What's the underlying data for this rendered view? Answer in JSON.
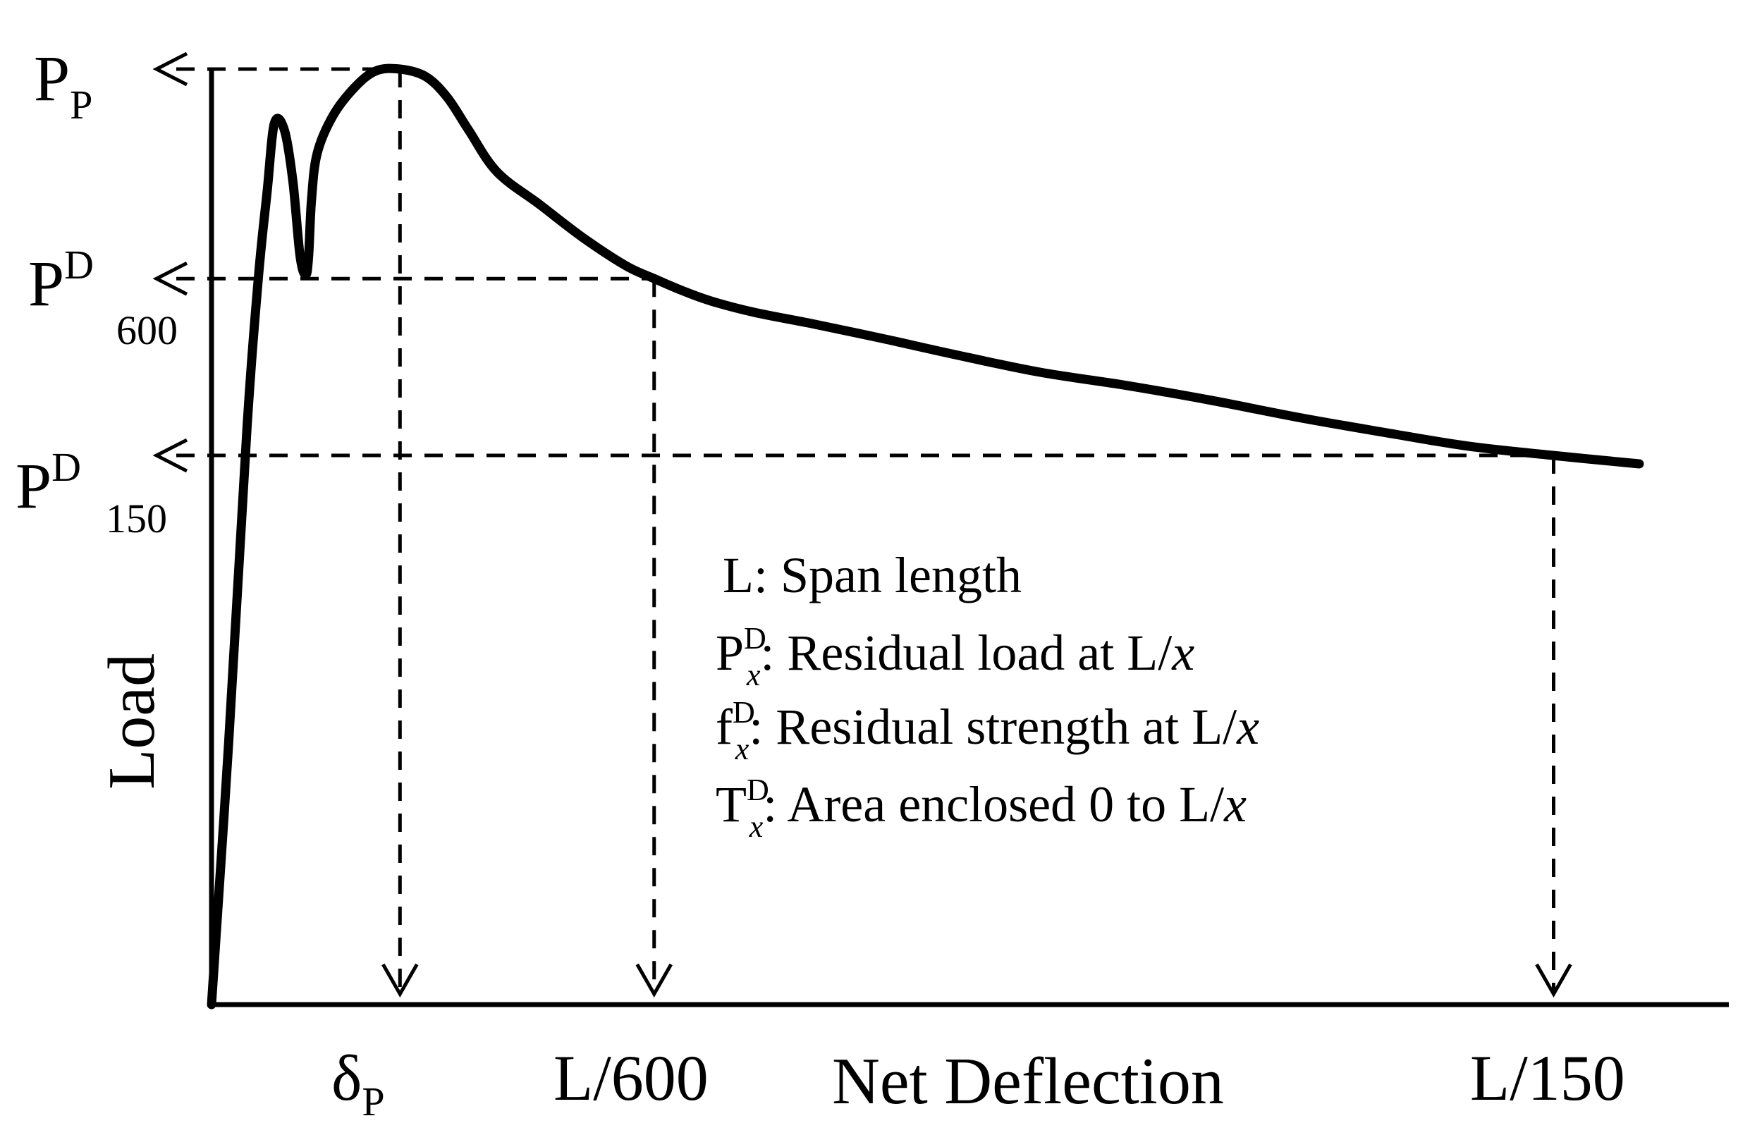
{
  "chart_data": {
    "type": "line",
    "title": "",
    "xlabel": "Net Deflection",
    "ylabel": "Load",
    "xlim": [
      0,
      1
    ],
    "ylim": [
      0,
      1
    ],
    "grid": false,
    "series": [
      {
        "name": "Load-deflection curve",
        "x": [
          0.0,
          0.012,
          0.025,
          0.033,
          0.039,
          0.044,
          0.051,
          0.057,
          0.062,
          0.066,
          0.068,
          0.07,
          0.074,
          0.085,
          0.1,
          0.115,
          0.132,
          0.15,
          0.165,
          0.18,
          0.2,
          0.23,
          0.26,
          0.29,
          0.31,
          0.33,
          0.35,
          0.38,
          0.42,
          0.47,
          0.52,
          0.58,
          0.64,
          0.7,
          0.76,
          0.82,
          0.88,
          0.94,
          1.0
        ],
        "values": [
          0.0,
          0.28,
          0.62,
          0.78,
          0.87,
          0.942,
          0.935,
          0.88,
          0.8,
          0.78,
          0.8,
          0.86,
          0.91,
          0.95,
          0.98,
          0.998,
          1.0,
          0.992,
          0.97,
          0.935,
          0.89,
          0.855,
          0.82,
          0.79,
          0.776,
          0.763,
          0.752,
          0.74,
          0.728,
          0.712,
          0.695,
          0.676,
          0.662,
          0.646,
          0.628,
          0.612,
          0.597,
          0.587,
          0.578
        ]
      }
    ],
    "reference_points": [
      {
        "name": "peak",
        "x": 0.132,
        "y": 1.0,
        "y_label": "P",
        "y_sub": "P",
        "x_label": "δ",
        "x_sub": "P"
      },
      {
        "name": "l600",
        "x": 0.31,
        "y": 0.776,
        "y_label": "P",
        "y_sup": "D",
        "y_sub": "600",
        "x_label": "L/600"
      },
      {
        "name": "l150",
        "x": 0.94,
        "y": 0.587,
        "y_label": "P",
        "y_sup": "D",
        "y_sub": "150",
        "x_label": "L/150"
      }
    ],
    "legend": [
      {
        "main": "L",
        "sup": "",
        "sub": "",
        "text": ": Span length"
      },
      {
        "main": "P",
        "sup": "D",
        "sub": "x",
        "text": ": Residual load at L/",
        "italic_tail": "x"
      },
      {
        "main": "f",
        "sup": "D",
        "sub": "x",
        "text": ": Residual strength at L/",
        "italic_tail": "x"
      },
      {
        "main": "T",
        "sup": "D",
        "sub": "x",
        "text": ": Area enclosed 0 to L/",
        "italic_tail": "x"
      }
    ],
    "colors": {
      "line": "#000000",
      "background": "#ffffff"
    }
  }
}
